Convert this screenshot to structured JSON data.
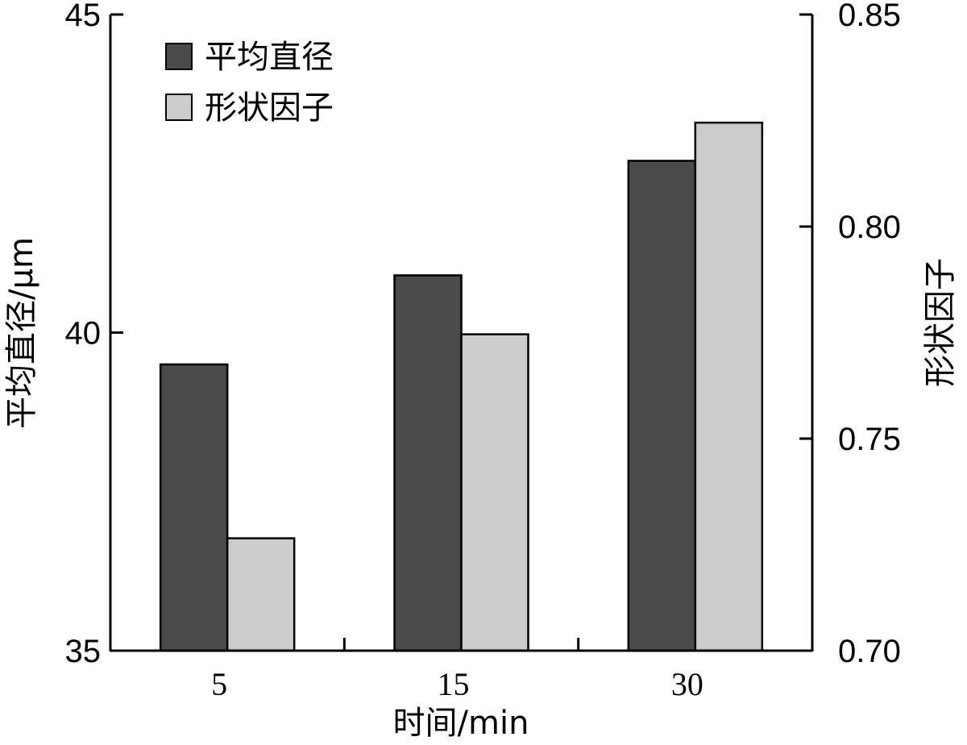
{
  "chart_data": {
    "type": "bar",
    "categories": [
      "5",
      "15",
      "30"
    ],
    "xlabel": "时间/min",
    "ylabel": "平均直径/μm",
    "y2label": "形状因子",
    "ylim": [
      35,
      45
    ],
    "y2lim": [
      0.7,
      0.85
    ],
    "yticks": [
      "35",
      "40",
      "45"
    ],
    "y2ticks": [
      "0.70",
      "0.75",
      "0.80",
      "0.85"
    ],
    "legend_position": "top-left",
    "grid": false,
    "series": [
      {
        "name": "平均直径",
        "axis": "left",
        "color": "#4a4a4a",
        "values": [
          39.5,
          40.9,
          42.7
        ]
      },
      {
        "name": "形状因子",
        "axis": "right",
        "color": "#cccccc",
        "values": [
          0.7265,
          0.7746,
          0.8245
        ]
      }
    ]
  }
}
